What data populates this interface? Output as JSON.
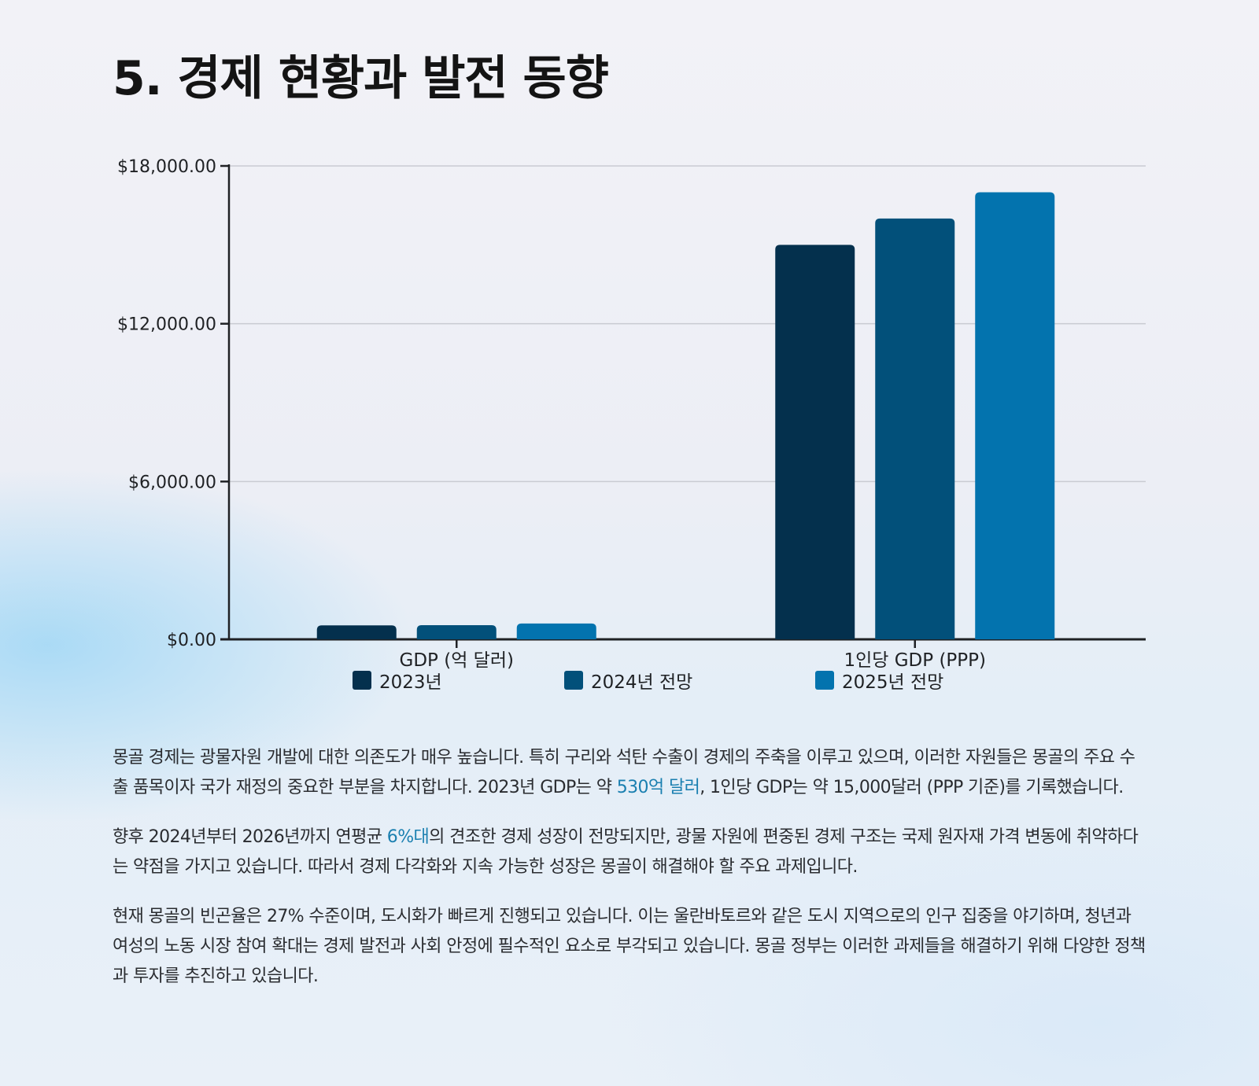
{
  "page": {
    "title": "5. 경제 현황과 발전 동향"
  },
  "chart_data": {
    "type": "bar",
    "title": "",
    "xlabel": "",
    "ylabel": "",
    "categories": [
      "GDP (억 달러)",
      "1인당 GDP (PPP)"
    ],
    "series": [
      {
        "name": "2023년",
        "values": [
          530,
          15000
        ],
        "color": "#04304d"
      },
      {
        "name": "2024년 전망",
        "values": [
          540,
          16000
        ],
        "color": "#02507a"
      },
      {
        "name": "2025년 전망",
        "values": [
          600,
          17000
        ],
        "color": "#0373ae"
      }
    ],
    "ylim": [
      0,
      18000
    ],
    "yticks": [
      "$0.00",
      "$6,000.00",
      "$12,000.00",
      "$18,000.00"
    ],
    "ytick_values": [
      0,
      6000,
      12000,
      18000
    ],
    "grid": true,
    "legend_position": "bottom"
  },
  "paragraphs": [
    {
      "parts": [
        {
          "text": "몽골 경제는 광물자원 개발에 대한 의존도가 매우 높습니다. 특히 구리와 석탄 수출이 경제의 주축을 이루고 있으며, 이러한 자원들은 몽골의 주요 수출 품목이자 국가 재정의 중요한 부분을 차지합니다. 2023년 GDP는 약 ",
          "highlight": false
        },
        {
          "text": "530억 달러",
          "highlight": true
        },
        {
          "text": ", 1인당 GDP는 약 15,000달러 (PPP 기준)를 기록했습니다.",
          "highlight": false
        }
      ]
    },
    {
      "parts": [
        {
          "text": "향후 2024년부터 2026년까지 연평균 ",
          "highlight": false
        },
        {
          "text": "6%대",
          "highlight": true
        },
        {
          "text": "의 견조한 경제 성장이 전망되지만, 광물 자원에 편중된 경제 구조는 국제 원자재 가격 변동에 취약하다는 약점을 가지고 있습니다. 따라서 경제 다각화와 지속 가능한 성장은 몽골이 해결해야 할 주요 과제입니다.",
          "highlight": false
        }
      ]
    },
    {
      "parts": [
        {
          "text": "현재 몽골의 빈곤율은 27% 수준이며, 도시화가 빠르게 진행되고 있습니다. 이는 울란바토르와 같은 도시 지역으로의 인구 집중을 야기하며, 청년과 여성의 노동 시장 참여 확대는 경제 발전과 사회 안정에 필수적인 요소로 부각되고 있습니다. 몽골 정부는 이러한 과제들을 해결하기 위해 다양한 정책과 투자를 추진하고 있습니다.",
          "highlight": false
        }
      ]
    }
  ]
}
